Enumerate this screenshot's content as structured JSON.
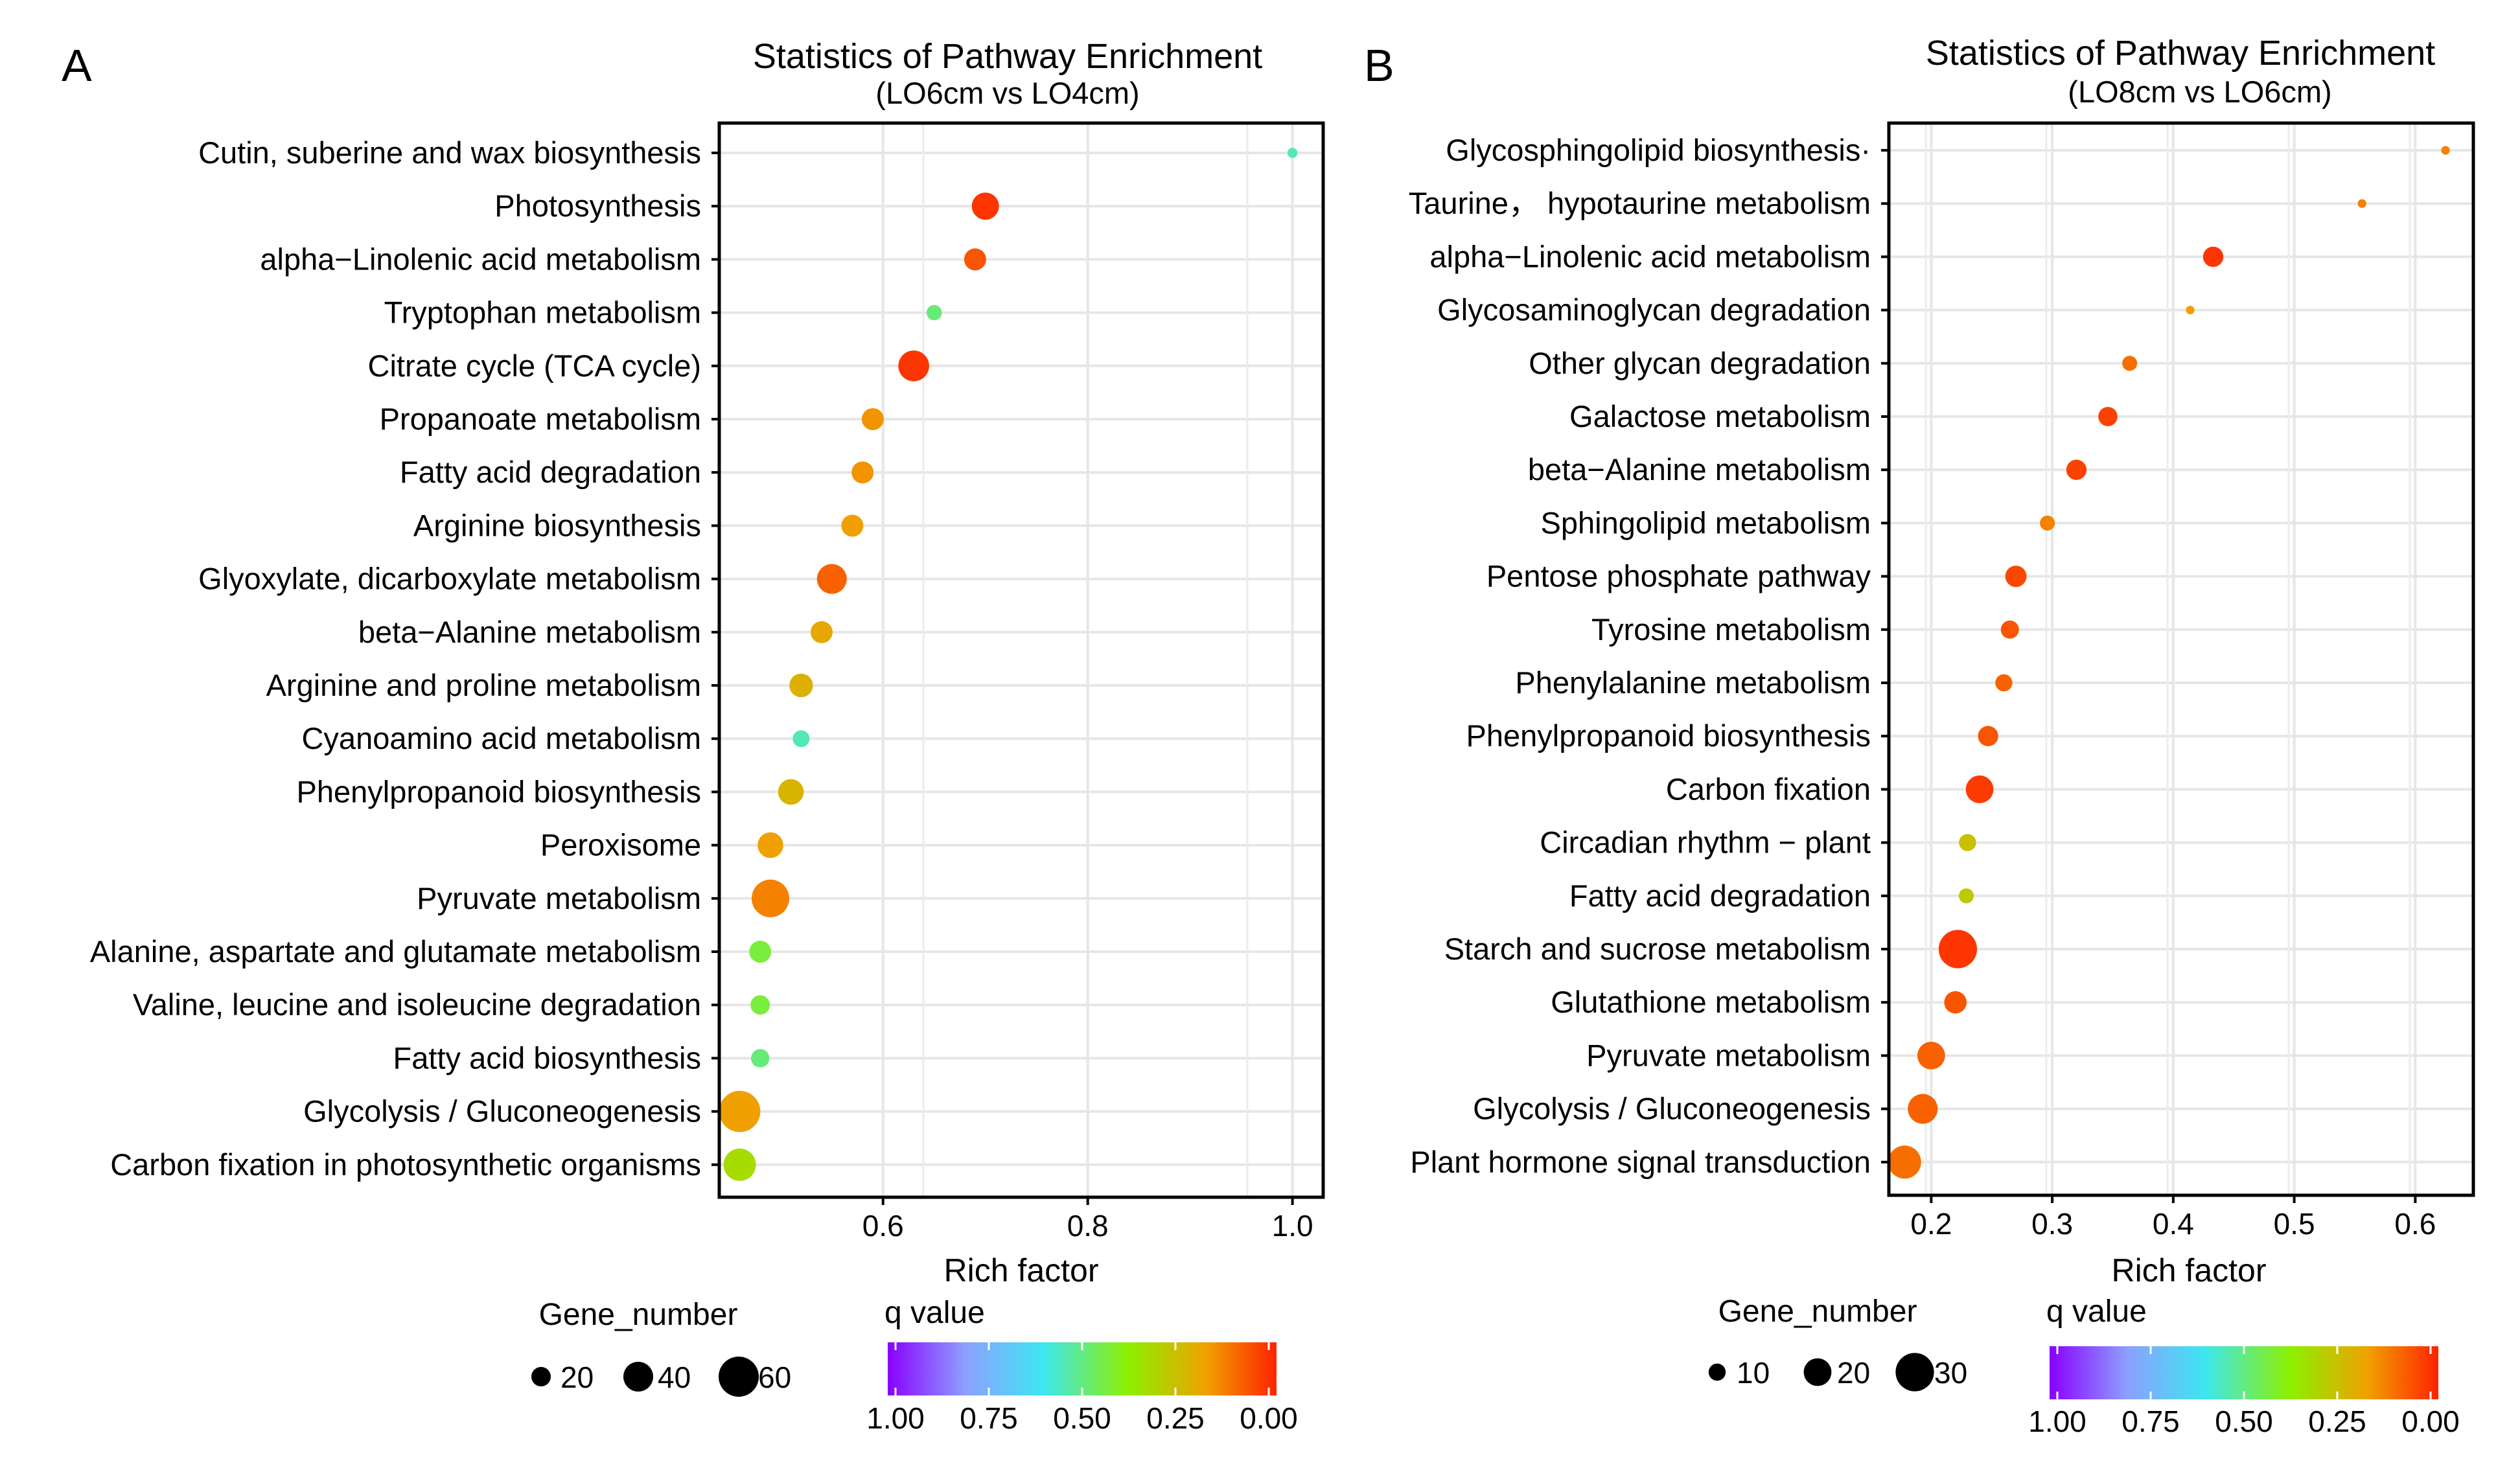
{
  "colors": {
    "q_scale": [
      "#8a00ff",
      "#8ca0ff",
      "#3ee6f0",
      "#8df000",
      "#f0a000",
      "#ff2200"
    ]
  },
  "chart_data": [
    {
      "type": "scatter",
      "panel_label": "A",
      "title": "Statistics of Pathway Enrichment",
      "subtitle": "(LO6cm vs LO4cm)",
      "xlabel": "Rich factor",
      "ylabel": "",
      "xlim": [
        0.44,
        1.03
      ],
      "xticks": [
        0.6,
        0.8,
        1.0
      ],
      "xtick_labels": [
        "0.6",
        "0.8",
        "1.0"
      ],
      "grid": true,
      "categories": [
        "Cutin, suberine and wax biosynthesis",
        "Photosynthesis",
        "alpha−Linolenic acid metabolism",
        "Tryptophan metabolism",
        "Citrate cycle (TCA cycle)",
        "Propanoate metabolism",
        "Fatty acid degradation",
        "Arginine biosynthesis",
        "Glyoxylate,  dicarboxylate metabolism",
        "beta−Alanine metabolism",
        "Arginine and proline metabolism",
        "Cyanoamino acid metabolism",
        "Phenylpropanoid biosynthesis",
        "Peroxisome",
        "Pyruvate metabolism",
        "Alanine, aspartate and glutamate metabolism",
        "Valine, leucine and isoleucine degradation",
        "Fatty acid biosynthesis",
        "Glycolysis / Gluconeogenesis",
        "Carbon fixation in photosynthetic organisms"
      ],
      "rich_factor": [
        1.0,
        0.7,
        0.69,
        0.65,
        0.63,
        0.59,
        0.58,
        0.57,
        0.55,
        0.54,
        0.52,
        0.52,
        0.51,
        0.49,
        0.49,
        0.48,
        0.48,
        0.48,
        0.46,
        0.46
      ],
      "gene_number": [
        2,
        35,
        25,
        12,
        42,
        25,
        25,
        25,
        40,
        25,
        28,
        15,
        32,
        32,
        55,
        25,
        20,
        18,
        62,
        45
      ],
      "q_value": [
        0.55,
        0.03,
        0.08,
        0.5,
        0.03,
        0.18,
        0.18,
        0.2,
        0.1,
        0.22,
        0.24,
        0.55,
        0.25,
        0.2,
        0.15,
        0.45,
        0.45,
        0.5,
        0.2,
        0.35
      ],
      "size_legend": {
        "title": "Gene_number",
        "values": [
          20,
          40,
          60
        ],
        "labels": [
          "20",
          "40",
          "60"
        ]
      },
      "color_legend": {
        "title": "q value",
        "tick_labels": [
          "1.00",
          "0.75",
          "0.50",
          "0.25",
          "0.00"
        ]
      }
    },
    {
      "type": "scatter",
      "panel_label": "B",
      "title": "Statistics of Pathway Enrichment",
      "subtitle": "(LO8cm vs LO6cm)",
      "xlabel": "Rich factor",
      "ylabel": "",
      "xlim": [
        0.165,
        0.648
      ],
      "xticks": [
        0.2,
        0.3,
        0.4,
        0.5,
        0.6
      ],
      "xtick_labels": [
        "0.2",
        "0.3",
        "0.4",
        "0.5",
        "0.6"
      ],
      "grid": true,
      "categories": [
        "Glycosphingolipid biosynthesis·",
        "Taurine， hypotaurine metabolism",
        "alpha−Linolenic acid metabolism",
        "Glycosaminoglycan degradation",
        "Other glycan degradation",
        "Galactose metabolism",
        "beta−Alanine metabolism",
        "Sphingolipid metabolism",
        "Pentose phosphate pathway",
        "Tyrosine metabolism",
        "Phenylalanine metabolism",
        "Phenylpropanoid biosynthesis",
        "Carbon fixation",
        "Circadian rhythm − plant",
        "Fatty acid degradation",
        "Starch and sucrose metabolism",
        "Glutathione metabolism",
        "Pyruvate metabolism",
        "Glycolysis / Gluconeogenesis",
        "Plant hormone signal transduction"
      ],
      "rich_factor": [
        0.625,
        0.556,
        0.433,
        0.414,
        0.364,
        0.346,
        0.32,
        0.296,
        0.27,
        0.265,
        0.26,
        0.247,
        0.24,
        0.23,
        0.229,
        0.222,
        0.22,
        0.2,
        0.193,
        0.178
      ],
      "gene_number": [
        2,
        2,
        13,
        2,
        8,
        12,
        13,
        8,
        14,
        11,
        10,
        13,
        20,
        10,
        8,
        30,
        15,
        20,
        22,
        25
      ],
      "q_value": [
        0.15,
        0.15,
        0.03,
        0.2,
        0.12,
        0.05,
        0.05,
        0.15,
        0.06,
        0.08,
        0.1,
        0.08,
        0.04,
        0.28,
        0.3,
        0.03,
        0.08,
        0.1,
        0.1,
        0.12
      ],
      "size_legend": {
        "title": "Gene_number",
        "values": [
          10,
          20,
          30
        ],
        "labels": [
          "10",
          "20",
          "30"
        ]
      },
      "color_legend": {
        "title": "q value",
        "tick_labels": [
          "1.00",
          "0.75",
          "0.50",
          "0.25",
          "0.00"
        ]
      }
    }
  ]
}
